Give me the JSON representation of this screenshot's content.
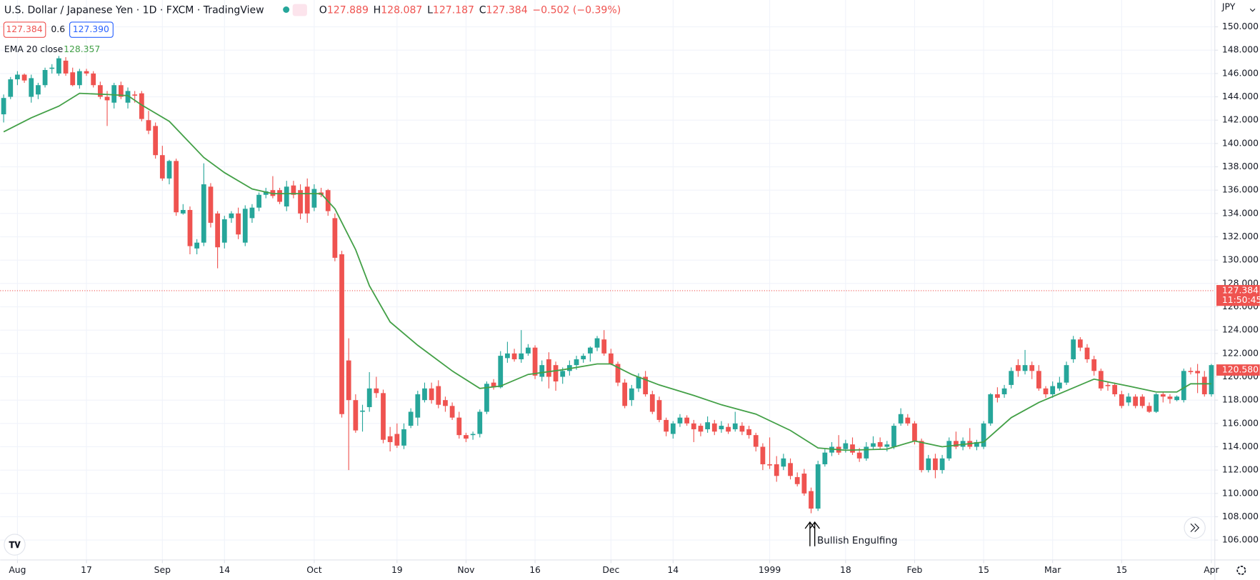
{
  "header": {
    "symbol": "U.S. Dollar / Japanese Yen · 1D · FXCM · TradingView",
    "ohlc": [
      {
        "label": "O",
        "value": "127.889"
      },
      {
        "label": "H",
        "value": "128.087"
      },
      {
        "label": "L",
        "value": "127.187"
      },
      {
        "label": "C",
        "value": "127.384"
      }
    ],
    "change": "−0.502 (−0.39%)",
    "sell": "127.384",
    "spread": "0.6",
    "buy": "127.390",
    "indicator": "EMA 20 close",
    "indicator_value": "128.357",
    "currency": "JPY"
  },
  "chart_data": {
    "type": "candlestick",
    "up_color": "#26a69a",
    "down_color": "#ef5350",
    "grid": true,
    "xlim": [
      -0.5,
      175.5
    ],
    "ylim": [
      104.3,
      152.3
    ],
    "xticks": [
      {
        "value": 2,
        "label": "Aug"
      },
      {
        "value": 12,
        "label": "17"
      },
      {
        "value": 23,
        "label": "Sep"
      },
      {
        "value": 32,
        "label": "14"
      },
      {
        "value": 45,
        "label": "Oct"
      },
      {
        "value": 57,
        "label": "19"
      },
      {
        "value": 67,
        "label": "Nov"
      },
      {
        "value": 77,
        "label": "16"
      },
      {
        "value": 88,
        "label": "Dec"
      },
      {
        "value": 97,
        "label": "14"
      },
      {
        "value": 111,
        "label": "1999"
      },
      {
        "value": 122,
        "label": "18"
      },
      {
        "value": 132,
        "label": "Feb"
      },
      {
        "value": 142,
        "label": "15"
      },
      {
        "value": 152,
        "label": "Mar"
      },
      {
        "value": 162,
        "label": "15"
      },
      {
        "value": 175,
        "label": "Apr"
      }
    ],
    "yticks": [
      {
        "value": 106,
        "label": "106.000"
      },
      {
        "value": 108,
        "label": "108.000"
      },
      {
        "value": 110,
        "label": "110.000"
      },
      {
        "value": 112,
        "label": "112.000"
      },
      {
        "value": 114,
        "label": "114.000"
      },
      {
        "value": 116,
        "label": "116.000"
      },
      {
        "value": 118,
        "label": "118.000"
      },
      {
        "value": 120,
        "label": "120.000"
      },
      {
        "value": 122,
        "label": "122.000"
      },
      {
        "value": 124,
        "label": "124.000"
      },
      {
        "value": 126,
        "label": "126.000"
      },
      {
        "value": 128,
        "label": "128.000"
      },
      {
        "value": 130,
        "label": "130.000"
      },
      {
        "value": 132,
        "label": "132.000"
      },
      {
        "value": 134,
        "label": "134.000"
      },
      {
        "value": 136,
        "label": "136.000"
      },
      {
        "value": 138,
        "label": "138.000"
      },
      {
        "value": 140,
        "label": "140.000"
      },
      {
        "value": 142,
        "label": "142.000"
      },
      {
        "value": 144,
        "label": "144.000"
      },
      {
        "value": 146,
        "label": "146.000"
      },
      {
        "value": 148,
        "label": "148.000"
      },
      {
        "value": 150,
        "label": "150.000"
      }
    ],
    "candles": [
      [
        142.5,
        144.2,
        141.8,
        143.9
      ],
      [
        144,
        145.7,
        143.8,
        145.5
      ],
      [
        145.5,
        146.2,
        145,
        145.9
      ],
      [
        145.9,
        146,
        145.2,
        145.4
      ],
      [
        144,
        145.9,
        143.5,
        145.6
      ],
      [
        144.2,
        145.2,
        143.8,
        145
      ],
      [
        145,
        146.5,
        144.8,
        146.3
      ],
      [
        146.4,
        146.8,
        146,
        146.5
      ],
      [
        146,
        147.5,
        145.8,
        147.3
      ],
      [
        147.1,
        147.4,
        145.8,
        146
      ],
      [
        146.1,
        146.5,
        144.9,
        145
      ],
      [
        145,
        146.4,
        144.7,
        146.2
      ],
      [
        146.2,
        146.4,
        145.8,
        146
      ],
      [
        146,
        146.2,
        144.8,
        145
      ],
      [
        145,
        145.3,
        143.8,
        144
      ],
      [
        144,
        144.5,
        141.5,
        143.7
      ],
      [
        143.5,
        145.2,
        143,
        145
      ],
      [
        145,
        145.3,
        143.8,
        144
      ],
      [
        143.5,
        144.8,
        143,
        144.5
      ],
      [
        144.2,
        144.5,
        143.5,
        144.1
      ],
      [
        144.3,
        144.5,
        141.9,
        142.1
      ],
      [
        142,
        142.8,
        140.8,
        141.1
      ],
      [
        141.5,
        141.8,
        138.7,
        139
      ],
      [
        139,
        139.8,
        136.8,
        137
      ],
      [
        137,
        138.6,
        136.5,
        138.5
      ],
      [
        138.5,
        138.7,
        133.8,
        134.1
      ],
      [
        134,
        134.8,
        133.9,
        134.3
      ],
      [
        134.3,
        134.6,
        130.5,
        131.2
      ],
      [
        131,
        131.8,
        130.5,
        131.5
      ],
      [
        131.5,
        138.3,
        131.2,
        136.5
      ],
      [
        136.3,
        136.6,
        132.8,
        133.2
      ],
      [
        134,
        134.2,
        129.3,
        131.1
      ],
      [
        131.5,
        133.8,
        131,
        133.5
      ],
      [
        133.6,
        134.2,
        133.2,
        134
      ],
      [
        134,
        134.5,
        131.8,
        132.2
      ],
      [
        131.5,
        134.7,
        131.2,
        134.4
      ],
      [
        133.6,
        134.8,
        133.2,
        134.5
      ],
      [
        134.5,
        135.8,
        134.2,
        135.6
      ],
      [
        135.6,
        136.2,
        135.3,
        135.9
      ],
      [
        136,
        137.2,
        135.3,
        135.5
      ],
      [
        136,
        136.2,
        134.8,
        135
      ],
      [
        134.6,
        136.8,
        134.2,
        136.3
      ],
      [
        136.4,
        136.8,
        135.3,
        135.6
      ],
      [
        136,
        136.5,
        133.5,
        134
      ],
      [
        136.3,
        137,
        133.2,
        134
      ],
      [
        134.5,
        136.5,
        134.2,
        136.1
      ],
      [
        135.8,
        136.2,
        135.4,
        135.6
      ],
      [
        136,
        136.1,
        133.8,
        134.2
      ],
      [
        133.6,
        134,
        129.9,
        130.2
      ],
      [
        130.5,
        130.8,
        116.5,
        116.8
      ],
      [
        121.4,
        123.3,
        112,
        118
      ],
      [
        118,
        118.5,
        115.2,
        115.4
      ],
      [
        117,
        117.6,
        115.3,
        117.1
      ],
      [
        117.4,
        120.4,
        117,
        119
      ],
      [
        119,
        120,
        118.2,
        118.6
      ],
      [
        118.6,
        118.9,
        114.3,
        114.6
      ],
      [
        114.9,
        115.7,
        113.6,
        114.4
      ],
      [
        115.1,
        116,
        113.9,
        114.1
      ],
      [
        114.1,
        116,
        113.8,
        115.5
      ],
      [
        115.8,
        117.3,
        115.6,
        117
      ],
      [
        116.5,
        118.8,
        115.8,
        118.5
      ],
      [
        118,
        119.5,
        117.8,
        119
      ],
      [
        119,
        119.5,
        117.7,
        118
      ],
      [
        119.2,
        119.7,
        117.3,
        117.6
      ],
      [
        118,
        118.3,
        117,
        117.5
      ],
      [
        117.5,
        117.8,
        116.3,
        116.5
      ],
      [
        116.5,
        117,
        114.7,
        115
      ],
      [
        115,
        115.2,
        114.4,
        114.7
      ],
      [
        115,
        115.3,
        114.6,
        115.1
      ],
      [
        115.1,
        117.2,
        114.8,
        117
      ],
      [
        117,
        119.6,
        116.8,
        119.4
      ],
      [
        119.5,
        119.8,
        118.9,
        119.1
      ],
      [
        119.1,
        122.2,
        119,
        121.8
      ],
      [
        121.6,
        123,
        121.2,
        122
      ],
      [
        122,
        122.4,
        121.3,
        121.5
      ],
      [
        121.5,
        124,
        121.2,
        122
      ],
      [
        122,
        122.8,
        121.8,
        122.5
      ],
      [
        122.5,
        122.7,
        119.8,
        120.1
      ],
      [
        120,
        121.4,
        119.6,
        121
      ],
      [
        121.5,
        122.1,
        119,
        120
      ],
      [
        121,
        121.3,
        118.8,
        119.6
      ],
      [
        120,
        120.8,
        119.4,
        120.5
      ],
      [
        120.5,
        121.4,
        120.1,
        121
      ],
      [
        121,
        121.8,
        120.6,
        121.5
      ],
      [
        121.5,
        122,
        121.2,
        121.8
      ],
      [
        122,
        122.6,
        121.3,
        122.5
      ],
      [
        122.5,
        123.5,
        122.2,
        123.3
      ],
      [
        123.2,
        124,
        121.8,
        122
      ],
      [
        122,
        122.4,
        121,
        121.1
      ],
      [
        121.1,
        121.3,
        119.2,
        119.5
      ],
      [
        119.5,
        119.8,
        117.3,
        117.5
      ],
      [
        118,
        119.3,
        117.5,
        119
      ],
      [
        119,
        120.3,
        118.7,
        120
      ],
      [
        120,
        120.5,
        118.3,
        118.5
      ],
      [
        118.5,
        118.8,
        116.8,
        117
      ],
      [
        118,
        118.3,
        116.1,
        116.3
      ],
      [
        116.3,
        116.5,
        114.9,
        115.3
      ],
      [
        115.1,
        116.2,
        114.7,
        116
      ],
      [
        116,
        116.8,
        115.7,
        116.5
      ],
      [
        116.5,
        116.7,
        115.8,
        116
      ],
      [
        116,
        116.3,
        114.4,
        115.5
      ],
      [
        115.8,
        116,
        114.9,
        115.3
      ],
      [
        115.5,
        116.6,
        115.2,
        116.1
      ],
      [
        116,
        116.3,
        115,
        115.3
      ],
      [
        115.5,
        116.2,
        115.2,
        115.8
      ],
      [
        115.7,
        116,
        115.1,
        115.3
      ],
      [
        115.5,
        117,
        115.3,
        116
      ],
      [
        115.8,
        116.1,
        115,
        115.3
      ],
      [
        115.5,
        115.8,
        114.7,
        115
      ],
      [
        115,
        115.2,
        113.6,
        114
      ],
      [
        114,
        114.3,
        112,
        112.5
      ],
      [
        112.5,
        114.8,
        112.1,
        112.4
      ],
      [
        112.5,
        113.2,
        111,
        111.5
      ],
      [
        112.3,
        113.4,
        112,
        113
      ],
      [
        112.6,
        113,
        111.2,
        111.5
      ],
      [
        111.4,
        111.8,
        110.6,
        110.8
      ],
      [
        111.7,
        112.1,
        109.8,
        110
      ],
      [
        110.2,
        110.5,
        108.3,
        108.7
      ],
      [
        108.7,
        112.8,
        108.5,
        112.5
      ],
      [
        112.5,
        113.8,
        112.3,
        113.5
      ],
      [
        113.5,
        114.4,
        113.2,
        114
      ],
      [
        114,
        115,
        113.3,
        113.5
      ],
      [
        113.8,
        114.6,
        113.5,
        114.3
      ],
      [
        114.2,
        114.8,
        113.3,
        113.5
      ],
      [
        113.5,
        113.9,
        112.7,
        113
      ],
      [
        113,
        114.4,
        112.8,
        114
      ],
      [
        114,
        114.9,
        113.8,
        114.3
      ],
      [
        114.4,
        114.8,
        113.8,
        114
      ],
      [
        114,
        114.5,
        113.6,
        114.2
      ],
      [
        114,
        116,
        113.8,
        115.8
      ],
      [
        116,
        117.3,
        115.8,
        116.8
      ],
      [
        116.5,
        116.8,
        115.8,
        116
      ],
      [
        116,
        116.2,
        114.2,
        114.5
      ],
      [
        114.5,
        114.7,
        111.8,
        112
      ],
      [
        112,
        113.3,
        111.8,
        113
      ],
      [
        113,
        113.4,
        111.3,
        112
      ],
      [
        112,
        113.3,
        111.7,
        113
      ],
      [
        113,
        114.8,
        112.8,
        114.5
      ],
      [
        114.5,
        115.3,
        113.8,
        114
      ],
      [
        114,
        114.8,
        113.7,
        114.5
      ],
      [
        114.5,
        115.6,
        113.8,
        114
      ],
      [
        114,
        114.6,
        113.7,
        114.4
      ],
      [
        114,
        116.2,
        113.8,
        116
      ],
      [
        116,
        118.6,
        115.8,
        118.5
      ],
      [
        118.5,
        119.1,
        117.8,
        118.2
      ],
      [
        118.5,
        119.3,
        118.2,
        119
      ],
      [
        119.3,
        120.8,
        119,
        120.5
      ],
      [
        121,
        121.5,
        120,
        120.5
      ],
      [
        120.5,
        122.3,
        120.2,
        121
      ],
      [
        121,
        121.3,
        119.8,
        120.5
      ],
      [
        120.5,
        121,
        118.8,
        119
      ],
      [
        119,
        119.2,
        118.2,
        118.5
      ],
      [
        118.5,
        119.6,
        118.2,
        119.2
      ],
      [
        119,
        120,
        118.8,
        119.5
      ],
      [
        119.5,
        121.3,
        119.3,
        121
      ],
      [
        121.5,
        123.5,
        121.2,
        123.2
      ],
      [
        123.2,
        123.4,
        122.2,
        122.5
      ],
      [
        122.5,
        122.8,
        121.2,
        121.5
      ],
      [
        121.5,
        121.8,
        120.1,
        120.5
      ],
      [
        120.5,
        120.7,
        118.8,
        119
      ],
      [
        119.3,
        119.6,
        118.8,
        119.2
      ],
      [
        119.3,
        119.5,
        118.3,
        118.5
      ],
      [
        118.5,
        118.8,
        117.3,
        117.5
      ],
      [
        117.8,
        118.6,
        117.5,
        118.3
      ],
      [
        118.3,
        118.5,
        117.3,
        117.5
      ],
      [
        118.3,
        118.5,
        117.3,
        117.5
      ],
      [
        117.5,
        117.8,
        116.9,
        117
      ],
      [
        117,
        118.6,
        116.9,
        118.5
      ],
      [
        118.5,
        118.7,
        117.8,
        118.3
      ],
      [
        118.3,
        118.5,
        117.7,
        118.1
      ],
      [
        118,
        118.4,
        117.9,
        118.3
      ],
      [
        118,
        120.7,
        117.8,
        120.5
      ],
      [
        120.5,
        120.8,
        120.2,
        120.4
      ],
      [
        120.5,
        121.1,
        118.6,
        120.3
      ],
      [
        120,
        120.5,
        118.3,
        118.5
      ],
      [
        118.5,
        121.1,
        118.3,
        121
      ]
    ],
    "ema": {
      "color": "#43a047",
      "x": [
        0,
        4,
        8,
        11,
        15,
        18,
        20,
        24,
        29,
        32,
        36,
        39,
        46,
        48,
        51,
        53,
        56,
        60,
        65,
        69,
        72,
        76,
        81,
        86,
        88,
        91,
        95,
        100,
        104,
        109,
        114,
        118,
        122,
        128,
        132,
        136,
        142,
        146,
        150,
        154,
        158,
        163,
        167,
        170,
        172,
        175
      ],
      "values": [
        141.0,
        142.2,
        143.2,
        144.3,
        144.2,
        144.1,
        143.3,
        141.9,
        138.8,
        137.5,
        136.1,
        135.7,
        135.7,
        134.4,
        130.9,
        127.8,
        124.7,
        122.7,
        120.5,
        119.0,
        119.2,
        120.2,
        120.6,
        121.1,
        121.1,
        120.2,
        119.3,
        118.4,
        117.6,
        116.8,
        115.4,
        113.9,
        113.7,
        113.8,
        114.5,
        114.0,
        114.4,
        116.5,
        117.8,
        118.8,
        119.8,
        119.2,
        118.7,
        118.7,
        119.4,
        119.4
      ]
    },
    "price_labels": [
      {
        "value": 127.384,
        "label": "127.384",
        "sub": "11:50:45",
        "color": "#ef5350"
      },
      {
        "value": 120.58,
        "label": "120.580",
        "color": "#ef5350"
      }
    ],
    "annotation": "Bullish Engulfing"
  }
}
